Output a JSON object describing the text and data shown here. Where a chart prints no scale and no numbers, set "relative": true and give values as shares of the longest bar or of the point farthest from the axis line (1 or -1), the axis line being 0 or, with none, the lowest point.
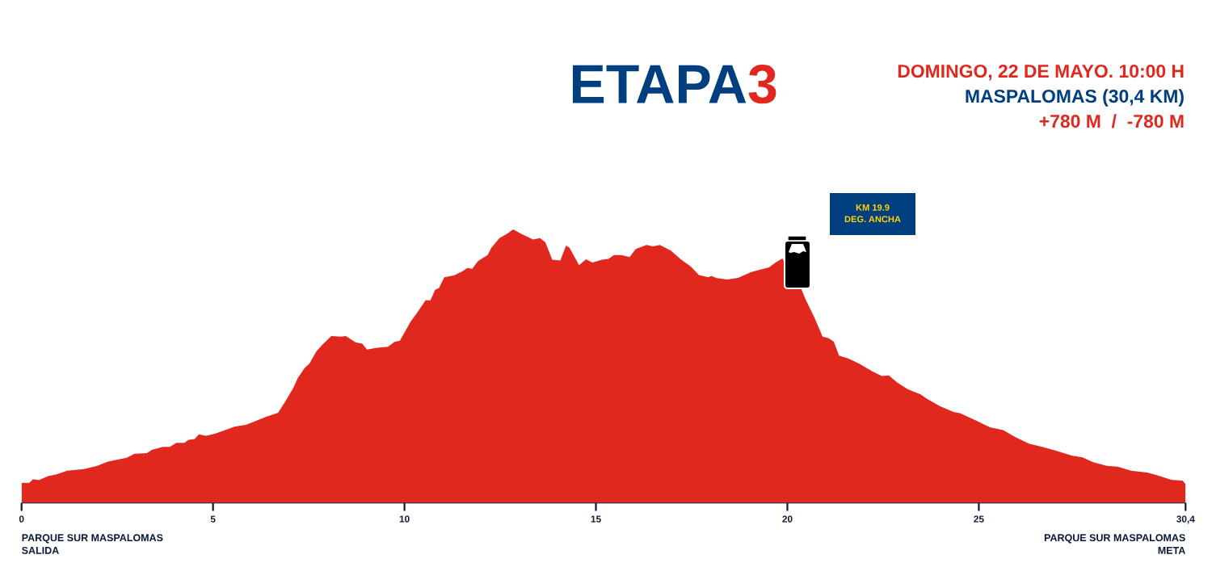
{
  "chart_data": {
    "type": "area",
    "relative": true,
    "title": "ETAPA3",
    "subtitle": "DOMINGO, 22 DE MAYO. 10:00 H\nMASPALOMAS (30,4 KM)\n+780 M  /  -780 M",
    "annotations": [
      "KM 19.9\nDEG. ANCHA",
      "PARQUE SUR MASPALOMAS\nSALIDA",
      "PARQUE SUR MASPALOMAS\nMETA"
    ],
    "x": [
      0,
      0.2,
      0.3,
      0.46,
      0.7,
      0.91,
      1.19,
      1.62,
      1.97,
      2.25,
      2.74,
      2.95,
      3.27,
      3.41,
      3.69,
      3.87,
      4.04,
      4.25,
      4.36,
      4.52,
      4.63,
      4.82,
      5.06,
      5.56,
      5.87,
      6.4,
      6.7,
      6.89,
      7.1,
      7.21,
      7.39,
      7.52,
      7.7,
      7.86,
      8.09,
      8.34,
      8.47,
      8.72,
      8.9,
      9.02,
      9.25,
      9.57,
      9.74,
      9.88,
      10.16,
      10.34,
      10.55,
      10.68,
      10.8,
      10.9,
      11.04,
      11.29,
      11.5,
      11.64,
      11.77,
      11.92,
      12.17,
      12.27,
      12.48,
      12.66,
      12.84,
      13.05,
      13.36,
      13.54,
      13.68,
      13.86,
      14.07,
      14.22,
      14.31,
      14.56,
      14.74,
      14.91,
      15.16,
      15.33,
      15.47,
      15.67,
      15.88,
      16.04,
      16.32,
      16.49,
      16.67,
      16.95,
      17.23,
      17.48,
      17.69,
      17.94,
      18.01,
      18.15,
      18.43,
      18.71,
      19.06,
      19.31,
      19.52,
      19.69,
      19.87,
      20.36,
      20.47,
      20.71,
      20.92,
      21.07,
      21.21,
      21.35,
      21.59,
      21.87,
      22.23,
      22.47,
      22.65,
      22.86,
      23.14,
      23.48,
      23.63,
      23.98,
      24.34,
      24.51,
      24.9,
      25.29,
      25.64,
      25.95,
      26.31,
      26.66,
      27.04,
      27.43,
      27.71,
      27.99,
      28.35,
      28.63,
      28.98,
      29.4,
      29.65,
      30.03,
      30.32,
      30.4
    ],
    "series": [
      {
        "color": "#e1281f",
        "values": [
          0.074,
          0.074,
          0.087,
          0.084,
          0.099,
          0.105,
          0.118,
          0.124,
          0.136,
          0.151,
          0.165,
          0.18,
          0.182,
          0.195,
          0.205,
          0.205,
          0.22,
          0.22,
          0.231,
          0.234,
          0.251,
          0.246,
          0.254,
          0.279,
          0.286,
          0.316,
          0.33,
          0.372,
          0.421,
          0.456,
          0.493,
          0.51,
          0.554,
          0.579,
          0.61,
          0.608,
          0.61,
          0.587,
          0.582,
          0.561,
          0.567,
          0.571,
          0.589,
          0.593,
          0.663,
          0.697,
          0.741,
          0.741,
          0.779,
          0.785,
          0.825,
          0.832,
          0.846,
          0.859,
          0.856,
          0.884,
          0.906,
          0.933,
          0.968,
          0.982,
          1,
          0.984,
          0.963,
          0.968,
          0.953,
          0.889,
          0.886,
          0.941,
          0.933,
          0.869,
          0.891,
          0.879,
          0.889,
          0.892,
          0.906,
          0.906,
          0.899,
          0.928,
          0.943,
          0.938,
          0.943,
          0.923,
          0.889,
          0.864,
          0.833,
          0.825,
          0.83,
          0.822,
          0.817,
          0.823,
          0.844,
          0.854,
          0.861,
          0.879,
          0.894,
          0.784,
          0.746,
          0.677,
          0.608,
          0.603,
          0.59,
          0.539,
          0.528,
          0.51,
          0.48,
          0.464,
          0.466,
          0.441,
          0.416,
          0.397,
          0.382,
          0.354,
          0.333,
          0.328,
          0.303,
          0.277,
          0.266,
          0.241,
          0.217,
          0.205,
          0.19,
          0.173,
          0.167,
          0.149,
          0.136,
          0.133,
          0.118,
          0.111,
          0.102,
          0.085,
          0.082,
          0.069
        ]
      }
    ],
    "xlim": [
      0,
      30.4
    ],
    "xticks": [
      0,
      5,
      10,
      15,
      20,
      25,
      {
        "value": 30.4,
        "label": "30,4"
      }
    ]
  }
}
